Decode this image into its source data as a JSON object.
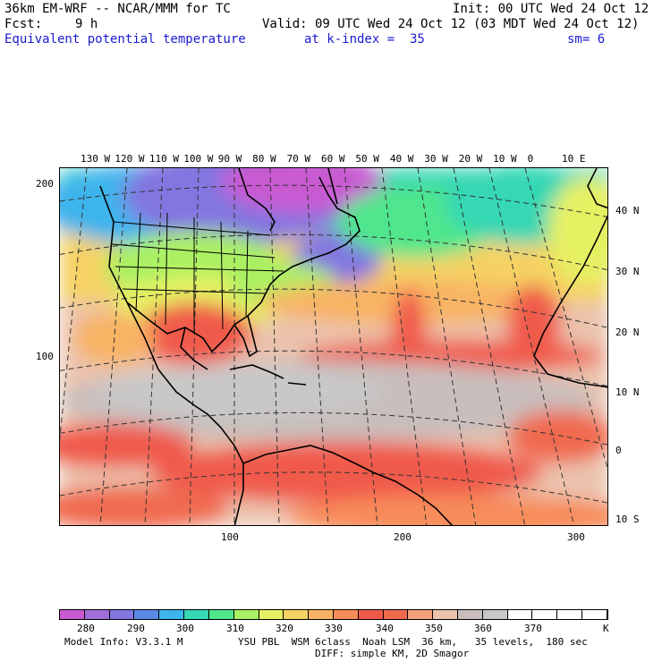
{
  "header": {
    "model_title": "36km EM-WRF -- NCAR/MMM for TC",
    "init": "Init: 00 UTC Wed 24 Oct 12",
    "fcst_label": "Fcst:",
    "fcst_value": "9 h",
    "valid": "Valid: 09 UTC Wed 24 Oct 12 (03 MDT Wed 24 Oct 12)",
    "field": "Equivalent potential temperature",
    "level": "at k-index =  35",
    "smoothing": "sm= 6"
  },
  "map": {
    "top_lon_labels": [
      "130 W",
      "120 W",
      "110 W",
      "100 W",
      "90 W",
      "80 W",
      "70 W",
      "60 W",
      "50 W",
      "40 W",
      "30 W",
      "20 W",
      "10 W",
      "0",
      "10 E"
    ],
    "right_lat_labels": [
      "40 N",
      "30 N",
      "20 N",
      "10 N",
      "0",
      "10 S"
    ],
    "left_grid_labels": [
      "200",
      "100"
    ],
    "bottom_grid_labels": [
      "100",
      "200",
      "300"
    ]
  },
  "colorbar": {
    "colors": [
      "#c85ad2",
      "#a070d8",
      "#8276e0",
      "#5a8ae6",
      "#3cb4ec",
      "#35d7b4",
      "#50e68c",
      "#aaf064",
      "#e6f064",
      "#f5d264",
      "#f8b464",
      "#f88c5a",
      "#f05a4b",
      "#f06a50",
      "#f4a07a",
      "#ebc3ad",
      "#c8bebc",
      "#c8c8c8",
      "#ffffff",
      "#ffffff",
      "#ffffff",
      "#ffffff"
    ],
    "labels": [
      "280",
      "290",
      "300",
      "310",
      "320",
      "330",
      "340",
      "350",
      "360",
      "370",
      "K"
    ]
  },
  "footer": {
    "model_info": "Model Info: V3.3.1 M",
    "physics": "YSU PBL  WSM 6class  Noah LSM  36 km,   35 levels,  180 sec",
    "diffusion": "DIFF: simple KM, 2D Smagor"
  }
}
